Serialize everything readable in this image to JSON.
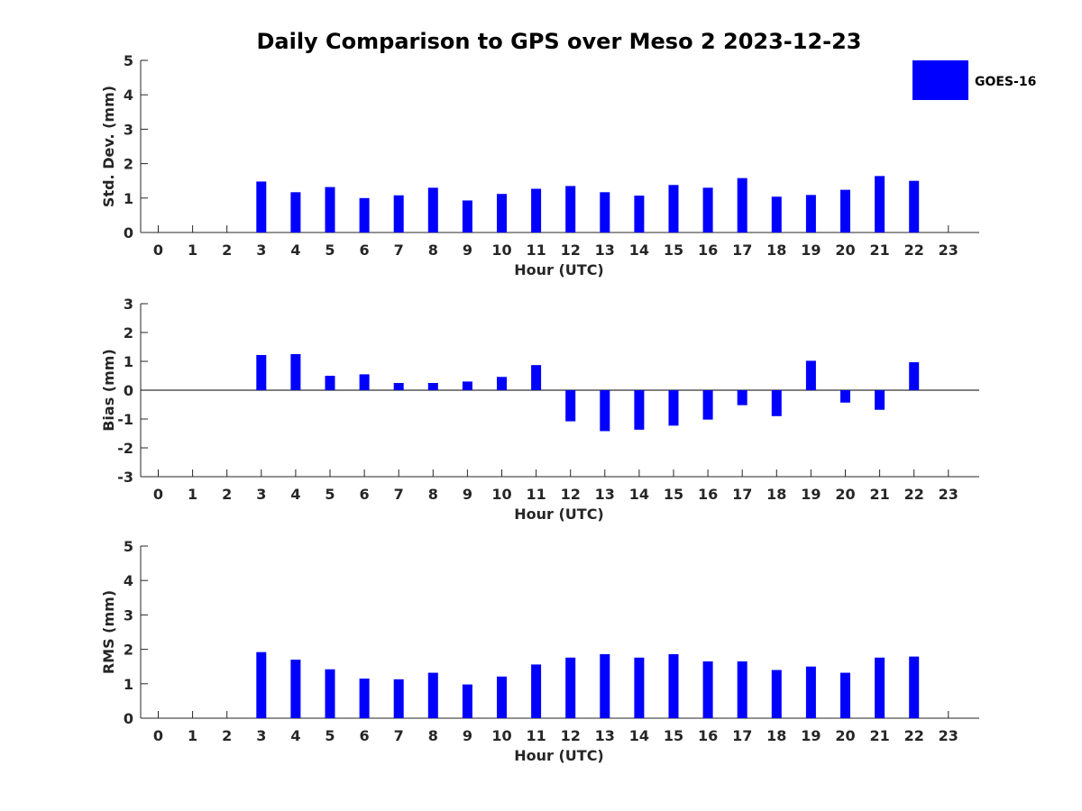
{
  "title": "Daily Comparison to GPS over Meso 2 2023-12-23",
  "legend": {
    "label": "GOES-16",
    "color": "#0000ff",
    "placement": "top-right"
  },
  "chart_data": [
    {
      "type": "bar",
      "ylabel": "Std. Dev. (mm)",
      "xlabel": "Hour (UTC)",
      "ylim": [
        0,
        5
      ],
      "yticks": [
        "0",
        "1",
        "2",
        "3",
        "4",
        "5"
      ],
      "categories": [
        "0",
        "1",
        "2",
        "3",
        "4",
        "5",
        "6",
        "7",
        "8",
        "9",
        "10",
        "11",
        "12",
        "13",
        "14",
        "15",
        "16",
        "17",
        "18",
        "19",
        "20",
        "21",
        "22",
        "23"
      ],
      "series": [
        {
          "name": "GOES-16",
          "values": [
            null,
            null,
            null,
            1.48,
            1.17,
            1.32,
            1.0,
            1.08,
            1.3,
            0.93,
            1.12,
            1.27,
            1.35,
            1.17,
            1.07,
            1.38,
            1.3,
            1.58,
            1.04,
            1.09,
            1.24,
            1.64,
            1.5,
            null
          ]
        }
      ]
    },
    {
      "type": "bar",
      "ylabel": "Bias (mm)",
      "xlabel": "Hour (UTC)",
      "ylim": [
        -3,
        3
      ],
      "yticks": [
        "-3",
        "-2",
        "-1",
        "0",
        "1",
        "2",
        "3"
      ],
      "categories": [
        "0",
        "1",
        "2",
        "3",
        "4",
        "5",
        "6",
        "7",
        "8",
        "9",
        "10",
        "11",
        "12",
        "13",
        "14",
        "15",
        "16",
        "17",
        "18",
        "19",
        "20",
        "21",
        "22",
        "23"
      ],
      "series": [
        {
          "name": "GOES-16",
          "values": [
            null,
            null,
            null,
            1.22,
            1.25,
            0.5,
            0.55,
            0.25,
            0.25,
            0.3,
            0.46,
            0.87,
            -1.08,
            -1.42,
            -1.37,
            -1.23,
            -1.02,
            -0.52,
            -0.9,
            1.02,
            -0.43,
            -0.68,
            0.97,
            null
          ]
        }
      ]
    },
    {
      "type": "bar",
      "ylabel": "RMS (mm)",
      "xlabel": "Hour (UTC)",
      "ylim": [
        0,
        5
      ],
      "yticks": [
        "0",
        "1",
        "2",
        "3",
        "4",
        "5"
      ],
      "categories": [
        "0",
        "1",
        "2",
        "3",
        "4",
        "5",
        "6",
        "7",
        "8",
        "9",
        "10",
        "11",
        "12",
        "13",
        "14",
        "15",
        "16",
        "17",
        "18",
        "19",
        "20",
        "21",
        "22",
        "23"
      ],
      "series": [
        {
          "name": "GOES-16",
          "values": [
            null,
            null,
            null,
            1.92,
            1.7,
            1.42,
            1.15,
            1.13,
            1.32,
            0.98,
            1.21,
            1.56,
            1.76,
            1.86,
            1.76,
            1.86,
            1.65,
            1.65,
            1.4,
            1.5,
            1.32,
            1.76,
            1.79,
            null
          ]
        }
      ]
    }
  ]
}
